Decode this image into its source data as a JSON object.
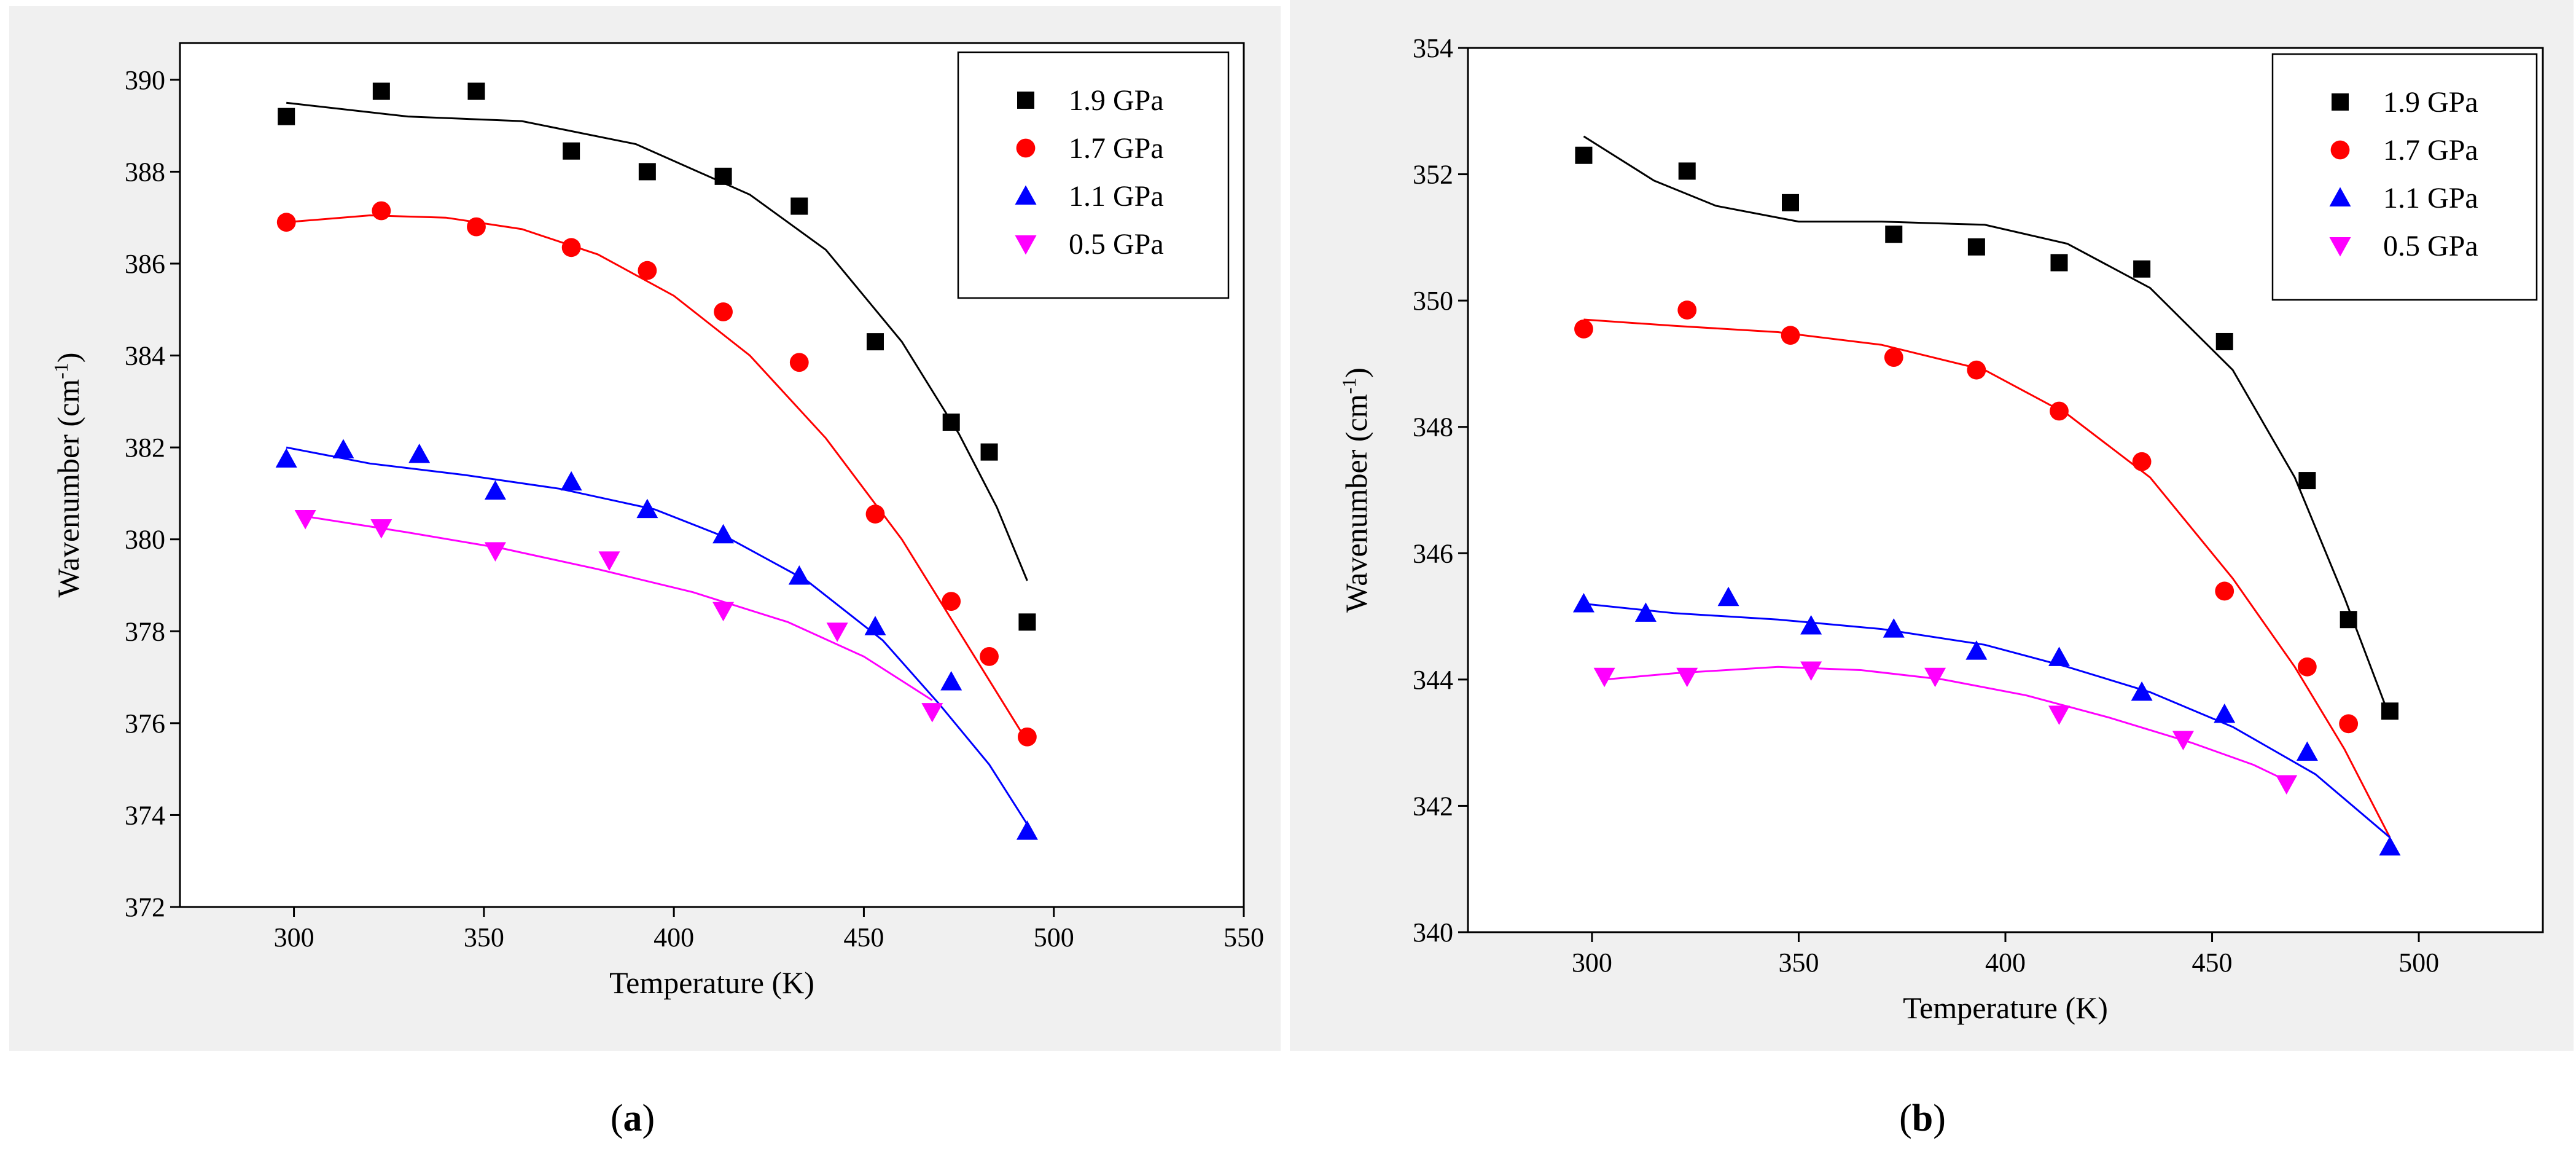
{
  "chart_data": [
    {
      "type": "scatter",
      "panel_label": "a",
      "caption_open": "(",
      "caption_close": ")",
      "xlabel": "Temperature (K)",
      "ylabel": "Wavenumber (cm",
      "ylabel_sup": "-1",
      "ylabel_close": ")",
      "xlim": [
        270,
        550
      ],
      "ylim": [
        372,
        390.8
      ],
      "xticks": [
        300,
        350,
        400,
        450,
        500,
        550
      ],
      "yticks": [
        372,
        374,
        376,
        378,
        380,
        382,
        384,
        386,
        388,
        390
      ],
      "legend_position": "top-right",
      "series": [
        {
          "name": "1.9 GPa",
          "marker": "square",
          "color": "#000000",
          "x": [
            298,
            323,
            348,
            373,
            393,
            413,
            433,
            453,
            473,
            483,
            493
          ],
          "y": [
            389.2,
            389.75,
            389.75,
            388.45,
            388.0,
            387.9,
            387.25,
            384.3,
            382.55,
            381.9,
            378.2
          ],
          "fit": [
            [
              298,
              389.5
            ],
            [
              330,
              389.2
            ],
            [
              360,
              389.1
            ],
            [
              390,
              388.6
            ],
            [
              420,
              387.5
            ],
            [
              440,
              386.3
            ],
            [
              460,
              384.3
            ],
            [
              475,
              382.3
            ],
            [
              485,
              380.7
            ],
            [
              493,
              379.1
            ]
          ]
        },
        {
          "name": "1.7 GPa",
          "marker": "circle",
          "color": "#ff0000",
          "x": [
            298,
            323,
            348,
            373,
            393,
            413,
            433,
            453,
            473,
            483,
            493
          ],
          "y": [
            386.9,
            387.15,
            386.8,
            386.35,
            385.85,
            384.95,
            383.85,
            380.55,
            378.65,
            377.45,
            375.7
          ],
          "fit": [
            [
              298,
              386.9
            ],
            [
              320,
              387.05
            ],
            [
              340,
              387.0
            ],
            [
              360,
              386.75
            ],
            [
              380,
              386.2
            ],
            [
              400,
              385.3
            ],
            [
              420,
              384.0
            ],
            [
              440,
              382.2
            ],
            [
              460,
              380.0
            ],
            [
              475,
              378.0
            ],
            [
              493,
              375.6
            ]
          ]
        },
        {
          "name": "1.1 GPa",
          "marker": "triangle-up",
          "color": "#0000ff",
          "x": [
            298,
            313,
            333,
            353,
            373,
            393,
            413,
            433,
            453,
            473,
            493
          ],
          "y": [
            381.75,
            381.95,
            381.85,
            381.05,
            381.25,
            380.65,
            380.1,
            379.2,
            378.1,
            376.9,
            373.65
          ],
          "fit": [
            [
              298,
              382.0
            ],
            [
              320,
              381.65
            ],
            [
              345,
              381.4
            ],
            [
              370,
              381.1
            ],
            [
              395,
              380.65
            ],
            [
              415,
              380.0
            ],
            [
              435,
              379.1
            ],
            [
              455,
              377.8
            ],
            [
              470,
              376.4
            ],
            [
              483,
              375.1
            ],
            [
              493,
              373.8
            ]
          ]
        },
        {
          "name": "0.5 GPa",
          "marker": "triangle-down",
          "color": "#ff00ff",
          "x": [
            303,
            323,
            353,
            383,
            413,
            443,
            468
          ],
          "y": [
            380.45,
            380.25,
            379.75,
            379.55,
            378.45,
            378.0,
            376.25
          ],
          "fit": [
            [
              303,
              380.5
            ],
            [
              330,
              380.15
            ],
            [
              355,
              379.8
            ],
            [
              380,
              379.35
            ],
            [
              405,
              378.85
            ],
            [
              430,
              378.2
            ],
            [
              450,
              377.45
            ],
            [
              468,
              376.5
            ]
          ]
        }
      ]
    },
    {
      "type": "scatter",
      "panel_label": "b",
      "caption_open": "(",
      "caption_close": ")",
      "xlabel": "Temperature (K)",
      "ylabel": "Wavenumber (cm",
      "ylabel_sup": "-1",
      "ylabel_close": ")",
      "xlim": [
        270,
        530
      ],
      "ylim": [
        340,
        354
      ],
      "xticks": [
        300,
        350,
        400,
        450,
        500
      ],
      "yticks": [
        340,
        342,
        344,
        346,
        348,
        350,
        352,
        354
      ],
      "legend_position": "top-right",
      "series": [
        {
          "name": "1.9 GPa",
          "marker": "square",
          "color": "#000000",
          "x": [
            298,
            323,
            348,
            373,
            393,
            413,
            433,
            453,
            473,
            483,
            493
          ],
          "y": [
            352.3,
            352.05,
            351.55,
            351.05,
            350.85,
            350.6,
            350.5,
            349.35,
            347.15,
            344.95,
            343.5
          ],
          "fit": [
            [
              298,
              352.6
            ],
            [
              315,
              351.9
            ],
            [
              330,
              351.5
            ],
            [
              350,
              351.25
            ],
            [
              370,
              351.25
            ],
            [
              395,
              351.2
            ],
            [
              415,
              350.9
            ],
            [
              435,
              350.2
            ],
            [
              455,
              348.9
            ],
            [
              470,
              347.2
            ],
            [
              482,
              345.3
            ],
            [
              493,
              343.4
            ]
          ]
        },
        {
          "name": "1.7 GPa",
          "marker": "circle",
          "color": "#ff0000",
          "x": [
            298,
            323,
            348,
            373,
            393,
            413,
            433,
            453,
            473,
            483
          ],
          "y": [
            349.55,
            349.85,
            349.45,
            349.1,
            348.9,
            348.25,
            347.45,
            345.4,
            344.2,
            343.3
          ],
          "fit": [
            [
              298,
              349.7
            ],
            [
              320,
              349.6
            ],
            [
              345,
              349.5
            ],
            [
              370,
              349.3
            ],
            [
              395,
              348.9
            ],
            [
              415,
              348.2
            ],
            [
              435,
              347.2
            ],
            [
              455,
              345.6
            ],
            [
              470,
              344.2
            ],
            [
              482,
              342.9
            ],
            [
              493,
              341.5
            ]
          ]
        },
        {
          "name": "1.1 GPa",
          "marker": "triangle-up",
          "color": "#0000ff",
          "x": [
            298,
            313,
            333,
            353,
            373,
            393,
            413,
            433,
            453,
            473,
            493
          ],
          "y": [
            345.2,
            345.05,
            345.3,
            344.85,
            344.8,
            344.45,
            344.35,
            343.8,
            343.45,
            342.85,
            341.35
          ],
          "fit": [
            [
              298,
              345.2
            ],
            [
              320,
              345.05
            ],
            [
              345,
              344.95
            ],
            [
              370,
              344.8
            ],
            [
              395,
              344.55
            ],
            [
              415,
              344.2
            ],
            [
              435,
              343.8
            ],
            [
              455,
              343.25
            ],
            [
              475,
              342.5
            ],
            [
              493,
              341.5
            ]
          ]
        },
        {
          "name": "0.5 GPa",
          "marker": "triangle-down",
          "color": "#ff00ff",
          "x": [
            303,
            323,
            353,
            383,
            413,
            443,
            468
          ],
          "y": [
            344.05,
            344.05,
            344.15,
            344.05,
            343.45,
            343.05,
            342.35
          ],
          "fit": [
            [
              303,
              344.0
            ],
            [
              320,
              344.1
            ],
            [
              345,
              344.2
            ],
            [
              365,
              344.15
            ],
            [
              385,
              344.0
            ],
            [
              405,
              343.75
            ],
            [
              425,
              343.4
            ],
            [
              445,
              343.0
            ],
            [
              460,
              342.65
            ],
            [
              468,
              342.4
            ]
          ]
        }
      ]
    }
  ]
}
